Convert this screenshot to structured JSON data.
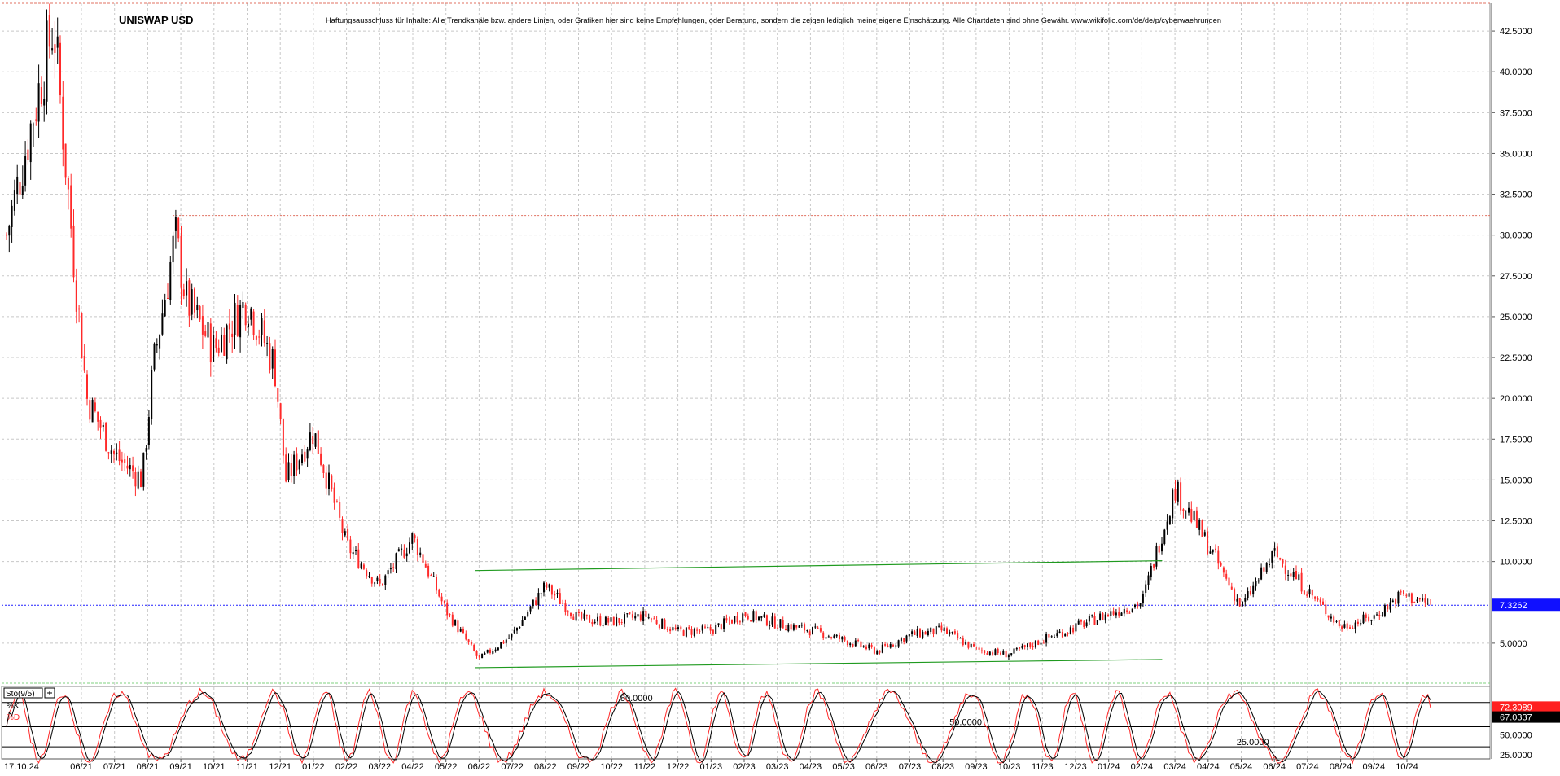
{
  "chart_data": {
    "type": "candlestick",
    "title": "UNISWAP USD",
    "disclaimer": "Haftungsausschluss für Inhalte: Alle Trendkanäle bzw. andere Linien, oder Grafiken hier sind keine Empfehlungen, oder Beratung, sondern die zeigen lediglich meine eigene Einschätzung. Alle Chartdaten sind ohne Gewähr.  www.wikifolio.com/de/de/p/cyberwaehrungen",
    "price_axis": {
      "ticks": [
        "42.5000",
        "40.0000",
        "37.5000",
        "35.0000",
        "32.5000",
        "30.0000",
        "27.5000",
        "25.0000",
        "22.5000",
        "20.0000",
        "17.5000",
        "15.0000",
        "12.5000",
        "10.0000",
        "5.0000"
      ],
      "tick_values": [
        42.5,
        40,
        37.5,
        35,
        32.5,
        30,
        27.5,
        25,
        22.5,
        20,
        17.5,
        15,
        12.5,
        10,
        5
      ],
      "ylim": [
        2.6,
        44.2
      ],
      "grid": true
    },
    "time_axis": {
      "labels": [
        "17.10.24",
        "06/21",
        "07/21",
        "08/21",
        "09/21",
        "10/21",
        "11/21",
        "12/21",
        "01/22",
        "02/22",
        "03/22",
        "04/22",
        "05/22",
        "06/22",
        "07/22",
        "08/22",
        "09/22",
        "10/22",
        "11/22",
        "12/22",
        "01/23",
        "02/23",
        "03/23",
        "04/23",
        "05/23",
        "06/23",
        "07/23",
        "08/23",
        "09/23",
        "10/23",
        "11/23",
        "12/23",
        "01/24",
        "02/24",
        "03/24",
        "04/24",
        "05/24",
        "06/24",
        "07/24",
        "08/24",
        "09/24",
        "10/24"
      ]
    },
    "current_price": {
      "label": "7.3262",
      "value": 7.3262
    },
    "anchor_points": [
      {
        "month": "05/21",
        "price": 30
      },
      {
        "month": "05/21",
        "price": 43
      },
      {
        "month": "06/21",
        "price": 27
      },
      {
        "month": "06/21",
        "price": 20
      },
      {
        "month": "07/21",
        "price": 16.5
      },
      {
        "month": "08/21",
        "price": 15
      },
      {
        "month": "08/21",
        "price": 22
      },
      {
        "month": "09/21",
        "price": 30
      },
      {
        "month": "09/21",
        "price": 26
      },
      {
        "month": "10/21",
        "price": 23
      },
      {
        "month": "11/21",
        "price": 26
      },
      {
        "month": "12/21",
        "price": 22
      },
      {
        "month": "12/21",
        "price": 15
      },
      {
        "month": "01/22",
        "price": 18
      },
      {
        "month": "02/22",
        "price": 11
      },
      {
        "month": "03/22",
        "price": 8.5
      },
      {
        "month": "04/22",
        "price": 11.5
      },
      {
        "month": "05/22",
        "price": 7
      },
      {
        "month": "06/22",
        "price": 4
      },
      {
        "month": "07/22",
        "price": 5.5
      },
      {
        "month": "08/22",
        "price": 8.5
      },
      {
        "month": "09/22",
        "price": 6.5
      },
      {
        "month": "10/22",
        "price": 6.3
      },
      {
        "month": "11/22",
        "price": 6.7
      },
      {
        "month": "12/22",
        "price": 5.7
      },
      {
        "month": "01/23",
        "price": 5.8
      },
      {
        "month": "02/23",
        "price": 6.8
      },
      {
        "month": "03/23",
        "price": 6.2
      },
      {
        "month": "04/23",
        "price": 5.8
      },
      {
        "month": "05/23",
        "price": 5.2
      },
      {
        "month": "06/23",
        "price": 4.5
      },
      {
        "month": "07/23",
        "price": 5.5
      },
      {
        "month": "08/23",
        "price": 5.8
      },
      {
        "month": "09/23",
        "price": 4.6
      },
      {
        "month": "10/23",
        "price": 4.3
      },
      {
        "month": "11/23",
        "price": 5.2
      },
      {
        "month": "12/23",
        "price": 6
      },
      {
        "month": "01/24",
        "price": 6.8
      },
      {
        "month": "02/24",
        "price": 7.5
      },
      {
        "month": "03/24",
        "price": 14.5
      },
      {
        "month": "04/24",
        "price": 11
      },
      {
        "month": "05/24",
        "price": 7.2
      },
      {
        "month": "06/24",
        "price": 10.5
      },
      {
        "month": "07/24",
        "price": 8.2
      },
      {
        "month": "08/24",
        "price": 6
      },
      {
        "month": "09/24",
        "price": 6.6
      },
      {
        "month": "10/24",
        "price": 8
      },
      {
        "month": "10/24",
        "price": 7.3262
      }
    ],
    "reference_lines": [
      {
        "type": "resistance",
        "price": 31.2,
        "color": "#e07060"
      }
    ],
    "trend_lines": [
      {
        "start": {
          "month": "06/22",
          "price": 9.45
        },
        "end": {
          "month": "02/24",
          "price": 10.05
        },
        "color": "#1f9a1f"
      },
      {
        "start": {
          "month": "06/22",
          "price": 3.5
        },
        "end": {
          "month": "02/24",
          "price": 4.0
        },
        "color": "#1f9a1f"
      }
    ],
    "candle_colors": {
      "up": "#000000",
      "down": "#ff2a2a"
    },
    "oscillator": {
      "label": "Sto(9/5)",
      "k_label": "%K",
      "d_label": "%D",
      "k_value": "72.3089",
      "d_value": "67.0337",
      "levels": [
        "80.0000",
        "50.0000",
        "25.0000"
      ],
      "level_values": [
        80,
        50,
        25
      ],
      "scale_ticks": [
        "50.0000",
        "25.0000"
      ],
      "k_color": "#ff2a2a",
      "d_color": "#000000"
    }
  }
}
